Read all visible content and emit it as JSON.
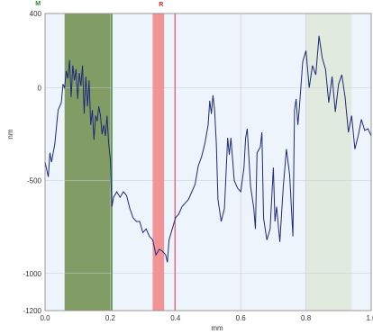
{
  "chart_data": {
    "type": "line",
    "xlabel": "mm",
    "ylabel": "nm",
    "xlim": [
      0.0,
      1.0
    ],
    "ylim": [
      -1200,
      400
    ],
    "x_ticks": [
      "0.0",
      "0.2",
      "0.4",
      "0.6",
      "0.8",
      "1.0"
    ],
    "y_ticks": [
      "400",
      "0",
      "-500",
      "-1000",
      "-1200"
    ],
    "grid": true,
    "colors": {
      "line": "#1f2a7a",
      "plot_background": "#eef4fb",
      "grid": "#c8ccd2",
      "region_dark": "#6f8c4a",
      "region_light": "#dfe9da",
      "marker_band": "#f28a8a",
      "marker_m": "#2e8b2e",
      "marker_r": "#e02020"
    },
    "regions": [
      {
        "kind": "dark",
        "x_start": 0.06,
        "x_end": 0.205
      },
      {
        "kind": "light",
        "x_start": 0.8,
        "x_end": 0.94
      }
    ],
    "markers": [
      {
        "label": "M",
        "x": 0.205,
        "kind": "line"
      },
      {
        "label": "R",
        "x_start": 0.33,
        "x_end": 0.365,
        "kind": "band"
      }
    ],
    "series": [
      {
        "x": [
          0.0,
          0.01,
          0.015,
          0.02,
          0.03,
          0.04,
          0.05,
          0.055,
          0.06,
          0.065,
          0.07,
          0.075,
          0.08,
          0.085,
          0.09,
          0.095,
          0.1,
          0.105,
          0.11,
          0.115,
          0.12,
          0.125,
          0.13,
          0.135,
          0.14,
          0.145,
          0.15,
          0.155,
          0.16,
          0.165,
          0.17,
          0.175,
          0.18,
          0.185,
          0.19,
          0.195,
          0.2,
          0.205,
          0.21,
          0.22,
          0.23,
          0.24,
          0.25,
          0.26,
          0.27,
          0.28,
          0.29,
          0.3,
          0.31,
          0.32,
          0.33,
          0.34,
          0.35,
          0.36,
          0.37,
          0.375,
          0.38,
          0.39,
          0.4,
          0.41,
          0.42,
          0.43,
          0.44,
          0.45,
          0.46,
          0.47,
          0.48,
          0.49,
          0.5,
          0.505,
          0.51,
          0.515,
          0.52,
          0.525,
          0.53,
          0.54,
          0.55,
          0.56,
          0.565,
          0.57,
          0.58,
          0.59,
          0.6,
          0.61,
          0.615,
          0.62,
          0.63,
          0.64,
          0.645,
          0.65,
          0.66,
          0.665,
          0.67,
          0.68,
          0.69,
          0.7,
          0.705,
          0.71,
          0.72,
          0.73,
          0.74,
          0.75,
          0.76,
          0.765,
          0.77,
          0.775,
          0.78,
          0.79,
          0.8,
          0.81,
          0.82,
          0.83,
          0.84,
          0.85,
          0.86,
          0.87,
          0.88,
          0.89,
          0.9,
          0.91,
          0.92,
          0.93,
          0.94,
          0.95,
          0.96,
          0.97,
          0.98,
          0.99,
          1.0
        ],
        "y": [
          -400,
          -480,
          -350,
          -400,
          -300,
          -120,
          -80,
          20,
          0,
          90,
          50,
          150,
          -50,
          120,
          40,
          100,
          -60,
          80,
          10,
          120,
          -140,
          60,
          -100,
          40,
          -200,
          -120,
          -280,
          -150,
          -180,
          -100,
          -150,
          -250,
          -200,
          -260,
          -150,
          -300,
          -380,
          -640,
          -590,
          -560,
          -590,
          -560,
          -580,
          -650,
          -700,
          -720,
          -720,
          -780,
          -760,
          -800,
          -820,
          -900,
          -870,
          -880,
          -900,
          -940,
          -820,
          -760,
          -700,
          -680,
          -640,
          -620,
          -600,
          -560,
          -520,
          -420,
          -370,
          -300,
          -200,
          -70,
          -140,
          -40,
          -120,
          -300,
          -600,
          -720,
          -650,
          -270,
          -360,
          -270,
          -500,
          -540,
          -560,
          -430,
          -270,
          -220,
          -530,
          -650,
          -760,
          -350,
          -320,
          -240,
          -700,
          -820,
          -760,
          -430,
          -720,
          -640,
          -830,
          -540,
          -330,
          -470,
          -800,
          -120,
          -60,
          -200,
          -100,
          140,
          200,
          0,
          120,
          70,
          280,
          160,
          100,
          -80,
          60,
          -130,
          20,
          70,
          -50,
          -240,
          -150,
          -330,
          -260,
          -170,
          -230,
          -220,
          -260
        ]
      }
    ]
  }
}
